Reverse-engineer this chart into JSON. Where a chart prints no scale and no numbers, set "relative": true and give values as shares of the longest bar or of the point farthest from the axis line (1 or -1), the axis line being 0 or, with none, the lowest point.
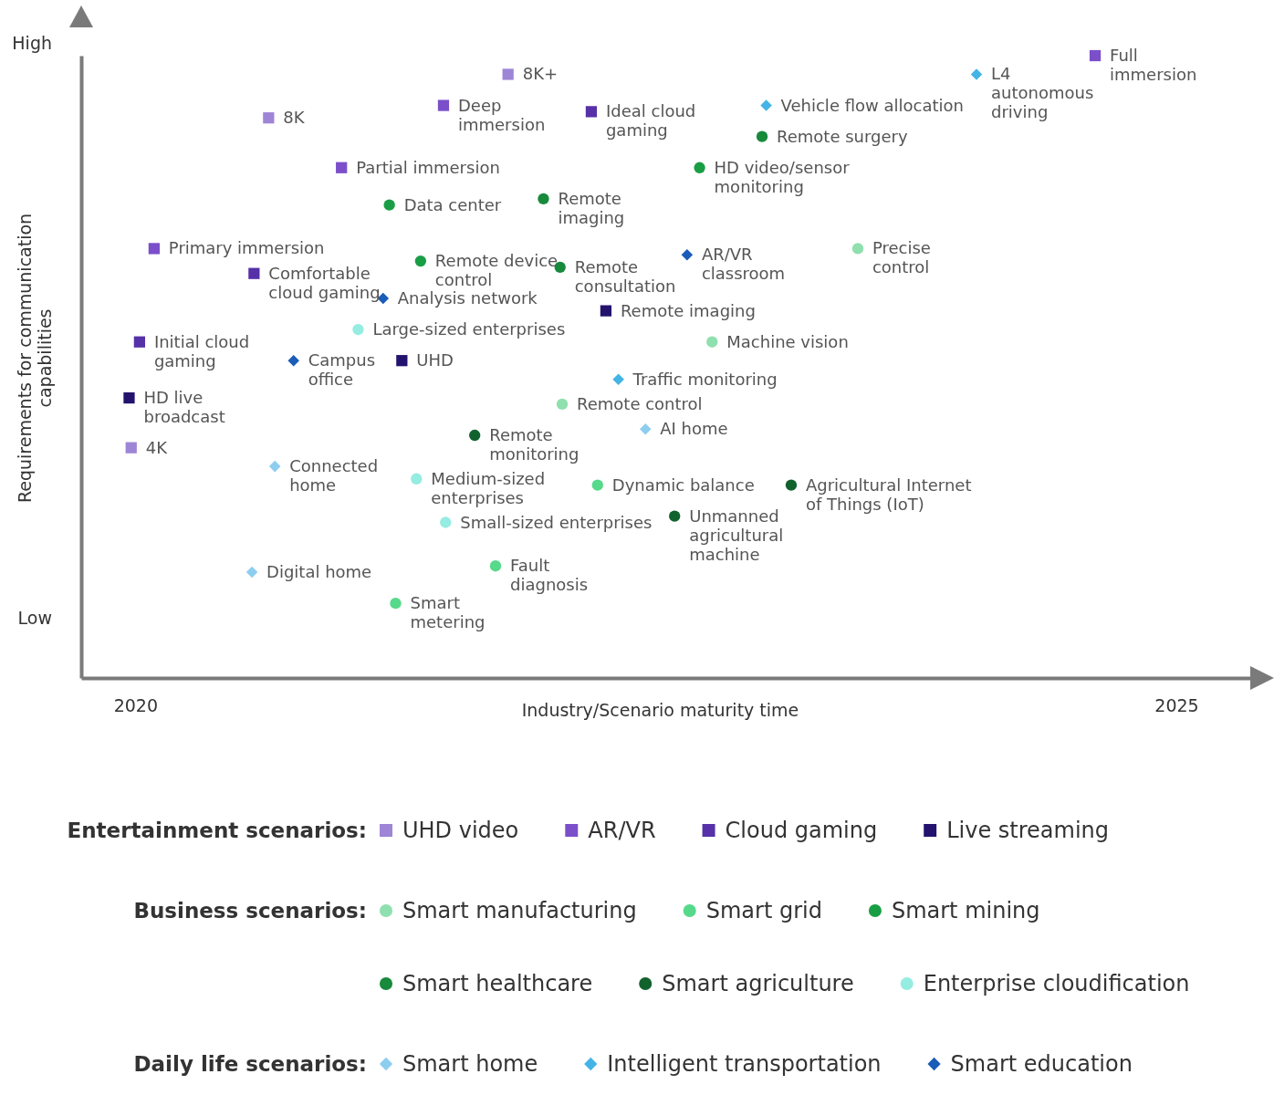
{
  "chart_data": {
    "type": "scatter",
    "xlabel": "Industry/Scenario maturity time",
    "ylabel": "Requirements for communication\ncapabilities",
    "xlim": [
      2019.74,
      2025.39
    ],
    "xticks": [
      2020,
      2025
    ],
    "relative": true,
    "grid": false,
    "legend": "bottom",
    "series": [
      {
        "name": "UHD video",
        "color": "#9e85d6",
        "marker": "square",
        "x": [
          2020.64,
          2021.79,
          2019.98
        ],
        "values": [
          0.9,
          0.97,
          0.37
        ]
      },
      {
        "name": "AR/VR",
        "color": "#7b4fc9",
        "marker": "square",
        "x": [
          2021.48,
          2020.99,
          2020.09,
          2024.61
        ],
        "values": [
          0.92,
          0.82,
          0.69,
          1
        ]
      },
      {
        "name": "Cloud gaming",
        "color": "#5631a8",
        "marker": "square",
        "x": [
          2022.19,
          2020.57,
          2020.02
        ],
        "values": [
          0.91,
          0.65,
          0.54
        ]
      },
      {
        "name": "Live streaming",
        "color": "#24136e",
        "marker": "square",
        "x": [
          2022.26,
          2021.28,
          2019.97
        ],
        "values": [
          0.59,
          0.51,
          0.45
        ]
      },
      {
        "name": "Smart manufacturing",
        "color": "#8fe0ae",
        "marker": "circle",
        "x": [
          2023.47,
          2022.77,
          2022.05
        ],
        "values": [
          0.69,
          0.54,
          0.44
        ]
      },
      {
        "name": "Smart grid",
        "color": "#56d98a",
        "marker": "circle",
        "x": [
          2022.22,
          2021.73,
          2021.25
        ],
        "values": [
          0.31,
          0.18,
          0.12
        ]
      },
      {
        "name": "Smart mining",
        "color": "#1a9e45",
        "marker": "circle",
        "x": [
          2021.22,
          2021.37,
          2022.71
        ],
        "values": [
          0.76,
          0.67,
          0.82
        ]
      },
      {
        "name": "Smart healthcare",
        "color": "#178a3c",
        "marker": "circle",
        "x": [
          2023.01,
          2021.96,
          2022.04
        ],
        "values": [
          0.87,
          0.77,
          0.66
        ]
      },
      {
        "name": "Smart agriculture",
        "color": "#12622e",
        "marker": "circle",
        "x": [
          2023.15,
          2022.59,
          2021.63
        ],
        "values": [
          0.31,
          0.26,
          0.39
        ]
      },
      {
        "name": "Enterprise cloudification",
        "color": "#95ece0",
        "marker": "circle",
        "x": [
          2021.07,
          2021.35,
          2021.49
        ],
        "values": [
          0.56,
          0.32,
          0.25
        ]
      },
      {
        "name": "Smart home",
        "color": "#8dcdef",
        "marker": "diamond",
        "x": [
          2020.67,
          2020.56,
          2022.45
        ],
        "values": [
          0.34,
          0.17,
          0.4
        ]
      },
      {
        "name": "Intelligent transportation",
        "color": "#44b4e6",
        "marker": "diamond",
        "x": [
          2023.03,
          2024.04,
          2022.32
        ],
        "values": [
          0.92,
          0.97,
          0.48
        ]
      },
      {
        "name": "Smart education",
        "color": "#1a5cb8",
        "marker": "diamond",
        "x": [
          2022.65,
          2021.19,
          2020.76
        ],
        "values": [
          0.68,
          0.61,
          0.51
        ]
      }
    ],
    "annotations": [
      "High",
      "Low",
      "Entertainment scenarios:",
      "Business scenarios:",
      "Daily life scenarios:",
      {
        "text": "8K",
        "x": 2020.64,
        "y": 0.9
      },
      {
        "text": "8K+",
        "x": 2021.79,
        "y": 0.97
      },
      {
        "text": "4K",
        "x": 2019.98,
        "y": 0.37
      },
      {
        "text": "Deep\nimmersion",
        "x": 2021.48,
        "y": 0.92
      },
      {
        "text": "Partial immersion",
        "x": 2020.99,
        "y": 0.82
      },
      {
        "text": "Primary immersion",
        "x": 2020.09,
        "y": 0.69
      },
      {
        "text": "Full\nimmersion",
        "x": 2024.61,
        "y": 1
      },
      {
        "text": "Ideal cloud\ngaming",
        "x": 2022.19,
        "y": 0.91
      },
      {
        "text": "Comfortable\ncloud gaming",
        "x": 2020.57,
        "y": 0.65
      },
      {
        "text": "Initial cloud\ngaming",
        "x": 2020.02,
        "y": 0.54
      },
      {
        "text": "Remote imaging",
        "x": 2022.26,
        "y": 0.59
      },
      {
        "text": "UHD",
        "x": 2021.28,
        "y": 0.51
      },
      {
        "text": "HD live\nbroadcast",
        "x": 2019.97,
        "y": 0.45
      },
      {
        "text": "Precise\ncontrol",
        "x": 2023.47,
        "y": 0.69
      },
      {
        "text": "Machine vision",
        "x": 2022.77,
        "y": 0.54
      },
      {
        "text": "Remote control",
        "x": 2022.05,
        "y": 0.44
      },
      {
        "text": "Dynamic balance",
        "x": 2022.22,
        "y": 0.31
      },
      {
        "text": "Fault\ndiagnosis",
        "x": 2021.73,
        "y": 0.18
      },
      {
        "text": "Smart\nmetering",
        "x": 2021.25,
        "y": 0.12
      },
      {
        "text": "Data center",
        "x": 2021.22,
        "y": 0.76
      },
      {
        "text": "Remote device\ncontrol",
        "x": 2021.37,
        "y": 0.67
      },
      {
        "text": "HD video/sensor\nmonitoring",
        "x": 2022.71,
        "y": 0.82
      },
      {
        "text": "Remote surgery",
        "x": 2023.01,
        "y": 0.87
      },
      {
        "text": "Remote\nimaging",
        "x": 2021.96,
        "y": 0.77
      },
      {
        "text": "Remote\nconsultation",
        "x": 2022.04,
        "y": 0.66
      },
      {
        "text": "Agricultural Internet\nof Things (IoT)",
        "x": 2023.15,
        "y": 0.31
      },
      {
        "text": "Unmanned\nagricultural\nmachine",
        "x": 2022.59,
        "y": 0.26
      },
      {
        "text": "Remote\nmonitoring",
        "x": 2021.63,
        "y": 0.39
      },
      {
        "text": "Large-sized enterprises",
        "x": 2021.07,
        "y": 0.56
      },
      {
        "text": "Medium-sized\nenterprises",
        "x": 2021.35,
        "y": 0.32
      },
      {
        "text": "Small-sized enterprises",
        "x": 2021.49,
        "y": 0.25
      },
      {
        "text": "Connected\nhome",
        "x": 2020.67,
        "y": 0.34
      },
      {
        "text": "Digital home",
        "x": 2020.56,
        "y": 0.17
      },
      {
        "text": "AI home",
        "x": 2022.45,
        "y": 0.4
      },
      {
        "text": "Vehicle flow allocation",
        "x": 2023.03,
        "y": 0.92
      },
      {
        "text": "L4\nautonomous\ndriving",
        "x": 2024.04,
        "y": 0.97
      },
      {
        "text": "Traffic monitoring",
        "x": 2022.32,
        "y": 0.48
      },
      {
        "text": "AR/VR\nclassroom",
        "x": 2022.65,
        "y": 0.68
      },
      {
        "text": "Analysis network",
        "x": 2021.19,
        "y": 0.61
      },
      {
        "text": "Campus\noffice",
        "x": 2020.76,
        "y": 0.51
      }
    ]
  }
}
